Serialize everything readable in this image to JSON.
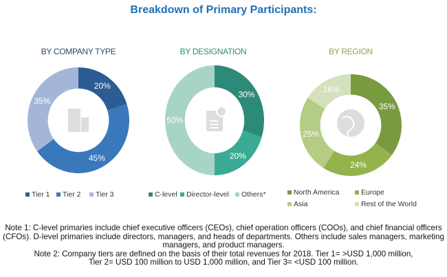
{
  "title": "Breakdown of Primary Participants:",
  "chart_data": [
    {
      "type": "pie",
      "donut": true,
      "title": "BY COMPANY TYPE",
      "title_color": "#2c4a6e",
      "icon": "building-icon",
      "categories": [
        "Tier 1",
        "Tier 2",
        "Tier 3"
      ],
      "values": [
        20,
        45,
        35
      ],
      "labels": [
        "20%",
        "45%",
        "35%"
      ],
      "colors": [
        "#2b5c94",
        "#3a78bc",
        "#a3b6d7"
      ]
    },
    {
      "type": "pie",
      "donut": true,
      "title": "BY DESIGNATION",
      "title_color": "#2e8a78",
      "icon": "document-icon",
      "categories": [
        "C-level",
        "Director-level",
        "Others*"
      ],
      "values": [
        30,
        20,
        50
      ],
      "labels": [
        "30%",
        "20%",
        "50%"
      ],
      "colors": [
        "#2e8a78",
        "#3aaa94",
        "#a7d4c7"
      ]
    },
    {
      "type": "pie",
      "donut": true,
      "title": "BY REGION",
      "title_color": "#8aa84a",
      "icon": "globe-icon",
      "categories": [
        "North America",
        "Europe",
        "Asia",
        "Rest of the World"
      ],
      "values": [
        35,
        24,
        25,
        16
      ],
      "labels": [
        "35%",
        "24%",
        "25%",
        "16%"
      ],
      "colors": [
        "#7a9a3f",
        "#95b34b",
        "#b4cc84",
        "#d3e1bd"
      ]
    }
  ],
  "notes": [
    "Note 1: C-level primaries include chief executive officers (CEOs), chief operation officers (COOs), and chief financial officers (CFOs). D-level primaries include directors, managers, and heads of departments. Others include sales managers, marketing managers, and product managers.",
    "Note 2: Company tiers are defined on the basis of their total revenues for 2018. Tier 1= >USD 1,000 million, Tier 2= USD 100 million to USD 1,000 million, and Tier 3= <USD 100 million."
  ]
}
